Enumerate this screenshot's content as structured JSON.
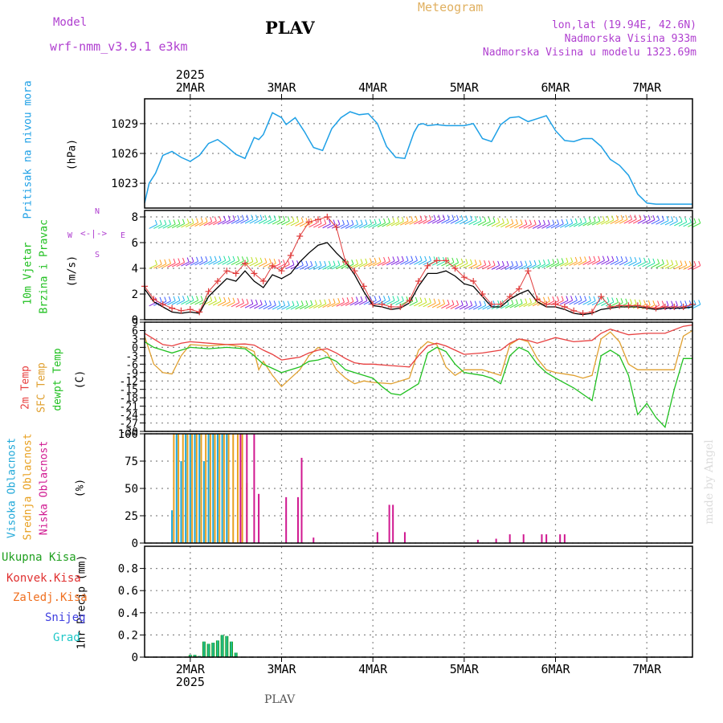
{
  "header": {
    "model_label": "Model",
    "model_name": "wrf-nmm_v3.9.1 e3km",
    "station": "PLAV",
    "title": "Meteogram",
    "coords": "lon,lat (19.94E, 42.6N)",
    "elevation": "Nadmorska Visina 933m",
    "model_elevation": "Nadmorska Visina u modelu 1323.69m",
    "footer_station": "PLAV",
    "watermark": "made by Angel"
  },
  "colors": {
    "pressure": "#1ea0e6",
    "wind_speed": "#000000",
    "wind_gust": "#e03c3c",
    "temp2m": "#e84040",
    "sfc_temp": "#e0a030",
    "dewpt": "#20c020",
    "cloud_high": "#20a8d8",
    "cloud_mid": "#e8a020",
    "cloud_low": "#d01890",
    "precip_total": "#20a020",
    "precip_conv": "#e03030",
    "precip_frz": "#f07020",
    "precip_snow": "#4040e0",
    "precip_grad": "#20c8c8",
    "model_purple": "#b040d0"
  },
  "chart_data": [
    {
      "type": "line",
      "panel": "pressure",
      "ylabel_main": "Pritisak na nivou mora",
      "ylabel_unit": "(hPa)",
      "ylim": [
        1020.5,
        1031.5
      ],
      "yticks": [
        1023,
        1026,
        1029
      ],
      "x_top_labels": [
        "2MAR",
        "3MAR",
        "4MAR",
        "5MAR",
        "6MAR",
        "7MAR"
      ],
      "x_top_year": "2025",
      "x_days": [
        1.5,
        7.5
      ],
      "series": [
        {
          "name": "MSLP",
          "x": [
            1.5,
            1.55,
            1.62,
            1.7,
            1.8,
            1.9,
            2.0,
            2.1,
            2.2,
            2.3,
            2.4,
            2.5,
            2.6,
            2.7,
            2.75,
            2.8,
            2.9,
            3.0,
            3.05,
            3.15,
            3.25,
            3.35,
            3.45,
            3.55,
            3.65,
            3.75,
            3.85,
            3.95,
            4.05,
            4.15,
            4.25,
            4.35,
            4.45,
            4.5,
            4.55,
            4.6,
            4.7,
            4.8,
            4.9,
            5.0,
            5.1,
            5.2,
            5.3,
            5.4,
            5.5,
            5.6,
            5.7,
            5.8,
            5.9,
            6.0,
            6.1,
            6.2,
            6.3,
            6.4,
            6.5,
            6.6,
            6.7,
            6.8,
            6.9,
            7.0,
            7.1,
            7.2,
            7.3,
            7.4,
            7.5
          ],
          "values": [
            1021.0,
            1023.0,
            1024.0,
            1025.8,
            1026.2,
            1025.6,
            1025.2,
            1025.8,
            1027.0,
            1027.4,
            1026.7,
            1025.9,
            1025.5,
            1027.6,
            1027.4,
            1027.9,
            1030.1,
            1029.6,
            1028.9,
            1029.6,
            1028.2,
            1026.6,
            1026.3,
            1028.5,
            1029.6,
            1030.2,
            1029.9,
            1030.0,
            1029.0,
            1026.7,
            1025.6,
            1025.5,
            1028.1,
            1028.9,
            1029.0,
            1028.8,
            1028.9,
            1028.8,
            1028.8,
            1028.8,
            1029.0,
            1027.5,
            1027.2,
            1028.9,
            1029.6,
            1029.7,
            1029.2,
            1029.5,
            1029.8,
            1028.3,
            1027.3,
            1027.2,
            1027.5,
            1027.5,
            1026.7,
            1025.4,
            1024.8,
            1023.8,
            1021.9,
            1021.0,
            1020.9,
            1020.9,
            1020.9,
            1020.9,
            1020.9
          ]
        }
      ]
    },
    {
      "type": "line",
      "panel": "wind",
      "ylabel_main": "10m Vjetar",
      "ylabel_sub": "Brzina i Pravac",
      "ylabel_unit": "(m/s)",
      "compass": {
        "n": "N",
        "s": "S",
        "w": "W",
        "e": "E"
      },
      "ylim": [
        0,
        8.5
      ],
      "yticks": [
        0,
        2,
        4,
        6,
        8
      ],
      "series": [
        {
          "name": "Speed",
          "x": [
            1.5,
            1.6,
            1.7,
            1.8,
            1.9,
            2.0,
            2.1,
            2.2,
            2.3,
            2.4,
            2.5,
            2.6,
            2.7,
            2.8,
            2.9,
            3.0,
            3.1,
            3.2,
            3.3,
            3.4,
            3.5,
            3.6,
            3.7,
            3.8,
            3.9,
            4.0,
            4.1,
            4.2,
            4.3,
            4.4,
            4.5,
            4.6,
            4.7,
            4.8,
            4.9,
            5.0,
            5.1,
            5.2,
            5.3,
            5.4,
            5.5,
            5.6,
            5.7,
            5.8,
            5.9,
            6.0,
            6.1,
            6.2,
            6.3,
            6.4,
            6.5,
            6.6,
            6.7,
            6.8,
            6.9,
            7.0,
            7.1,
            7.2,
            7.3,
            7.4,
            7.5
          ],
          "values": [
            2.4,
            1.4,
            1.0,
            0.6,
            0.5,
            0.6,
            0.5,
            1.8,
            2.5,
            3.2,
            3.0,
            3.8,
            3.0,
            2.5,
            3.5,
            3.2,
            3.6,
            4.5,
            5.2,
            5.8,
            6.0,
            5.2,
            4.5,
            3.5,
            2.2,
            1.1,
            1.0,
            0.8,
            0.9,
            1.3,
            2.6,
            3.6,
            3.6,
            3.8,
            3.4,
            2.8,
            2.6,
            1.8,
            1.0,
            1.0,
            1.6,
            2.0,
            2.3,
            1.4,
            1.0,
            1.0,
            0.8,
            0.5,
            0.4,
            0.5,
            0.8,
            0.9,
            1.0,
            1.0,
            1.0,
            0.9,
            0.8,
            0.9,
            0.9,
            0.9,
            1.0
          ]
        },
        {
          "name": "Gust",
          "x": [
            1.5,
            1.6,
            1.7,
            1.8,
            1.9,
            2.0,
            2.1,
            2.2,
            2.3,
            2.4,
            2.5,
            2.6,
            2.7,
            2.8,
            2.9,
            3.0,
            3.1,
            3.2,
            3.3,
            3.4,
            3.5,
            3.6,
            3.7,
            3.8,
            3.9,
            4.0,
            4.1,
            4.2,
            4.3,
            4.4,
            4.5,
            4.6,
            4.7,
            4.8,
            4.9,
            5.0,
            5.1,
            5.2,
            5.3,
            5.4,
            5.5,
            5.6,
            5.7,
            5.8,
            5.9,
            6.0,
            6.1,
            6.2,
            6.3,
            6.4,
            6.5,
            6.6,
            6.7,
            6.8,
            6.9,
            7.0,
            7.1,
            7.2,
            7.3,
            7.4,
            7.5
          ],
          "values": [
            2.6,
            1.6,
            1.2,
            0.9,
            0.7,
            0.8,
            0.6,
            2.2,
            3.0,
            3.8,
            3.6,
            4.4,
            3.6,
            3.0,
            4.2,
            3.8,
            5.0,
            6.5,
            7.6,
            7.8,
            8.0,
            7.2,
            4.5,
            3.8,
            2.6,
            1.2,
            1.2,
            1.0,
            1.0,
            1.5,
            3.0,
            4.2,
            4.6,
            4.6,
            4.0,
            3.3,
            3.0,
            2.0,
            1.2,
            1.2,
            1.8,
            2.4,
            3.8,
            1.6,
            1.2,
            1.2,
            1.0,
            0.7,
            0.5,
            0.6,
            1.8,
            1.0,
            1.1,
            1.1,
            1.1,
            1.0,
            0.9,
            1.0,
            1.0,
            1.0,
            1.2
          ]
        }
      ]
    },
    {
      "type": "line",
      "panel": "temperature",
      "ylabel_2m": "2m Temp",
      "ylabel_sfc": "SFC Temp",
      "ylabel_dew": "dewpt Temp",
      "ylabel_unit": "(C)",
      "ylim": [
        -30,
        9
      ],
      "yticks": [
        9,
        6,
        3,
        0,
        -3,
        -6,
        -9,
        -12,
        -15,
        -18,
        -21,
        -24,
        -27,
        -30
      ],
      "series": [
        {
          "name": "2m Temp",
          "x": [
            1.5,
            1.6,
            1.7,
            1.8,
            1.9,
            2.0,
            2.2,
            2.4,
            2.6,
            2.7,
            2.8,
            2.9,
            3.0,
            3.1,
            3.2,
            3.3,
            3.4,
            3.5,
            3.6,
            3.7,
            3.8,
            3.9,
            4.0,
            4.2,
            4.4,
            4.5,
            4.6,
            4.7,
            4.8,
            4.9,
            5.0,
            5.2,
            5.4,
            5.5,
            5.6,
            5.7,
            5.8,
            6.0,
            6.2,
            6.4,
            6.5,
            6.6,
            6.7,
            6.8,
            7.0,
            7.2,
            7.4,
            7.5
          ],
          "values": [
            5.0,
            3.0,
            1.0,
            0.5,
            1.5,
            2.0,
            1.5,
            1.0,
            1.2,
            0.8,
            -1.0,
            -2.5,
            -4.5,
            -4.0,
            -3.5,
            -2.0,
            -1.0,
            -0.5,
            -2.0,
            -4.0,
            -5.5,
            -6.0,
            -6.0,
            -6.5,
            -7.0,
            -3.0,
            0.5,
            1.5,
            0.5,
            -1.0,
            -2.5,
            -2.0,
            -1.0,
            1.5,
            3.0,
            2.5,
            1.5,
            3.5,
            2.0,
            2.5,
            5.0,
            6.5,
            5.5,
            4.5,
            5.0,
            5.0,
            7.5,
            8.0
          ]
        },
        {
          "name": "SFC Temp",
          "x": [
            1.5,
            1.6,
            1.7,
            1.8,
            1.9,
            2.0,
            2.2,
            2.4,
            2.6,
            2.7,
            2.75,
            2.8,
            2.9,
            3.0,
            3.1,
            3.2,
            3.3,
            3.4,
            3.5,
            3.6,
            3.7,
            3.8,
            3.9,
            4.0,
            4.2,
            4.4,
            4.5,
            4.6,
            4.7,
            4.8,
            4.9,
            5.0,
            5.2,
            5.3,
            5.4,
            5.5,
            5.6,
            5.7,
            5.8,
            5.9,
            6.0,
            6.2,
            6.3,
            6.4,
            6.5,
            6.6,
            6.7,
            6.8,
            6.9,
            7.0,
            7.2,
            7.3,
            7.4,
            7.5
          ],
          "values": [
            4.0,
            -6.0,
            -9.0,
            -9.5,
            -3.0,
            1.0,
            0.5,
            1.0,
            0.0,
            -1.5,
            -8.0,
            -5.0,
            -10.0,
            -14.0,
            -11.0,
            -8.0,
            -3.0,
            0.0,
            -2.0,
            -8.0,
            -11.0,
            -13.0,
            -12.0,
            -12.5,
            -13.0,
            -11.0,
            -1.0,
            2.0,
            1.0,
            -7.0,
            -10.0,
            -8.0,
            -8.0,
            -9.0,
            -10.0,
            1.0,
            3.0,
            2.0,
            -4.0,
            -8.0,
            -9.0,
            -10.0,
            -11.0,
            -10.0,
            3.0,
            5.5,
            2.0,
            -6.0,
            -8.0,
            -8.0,
            -8.0,
            -8.0,
            4.0,
            6.0
          ]
        },
        {
          "name": "Dewpt",
          "x": [
            1.5,
            1.6,
            1.7,
            1.8,
            1.9,
            2.0,
            2.2,
            2.4,
            2.6,
            2.7,
            2.8,
            2.9,
            3.0,
            3.1,
            3.2,
            3.3,
            3.4,
            3.5,
            3.6,
            3.7,
            3.8,
            3.9,
            4.0,
            4.1,
            4.2,
            4.3,
            4.4,
            4.5,
            4.6,
            4.7,
            4.8,
            4.9,
            5.0,
            5.2,
            5.3,
            5.4,
            5.5,
            5.6,
            5.7,
            5.8,
            5.9,
            6.0,
            6.2,
            6.4,
            6.5,
            6.6,
            6.7,
            6.8,
            6.9,
            7.0,
            7.1,
            7.2,
            7.3,
            7.4,
            7.5
          ],
          "values": [
            2.0,
            0.0,
            -1.0,
            -2.0,
            -1.0,
            0.0,
            -0.5,
            0.0,
            -0.5,
            -3.0,
            -6.0,
            -7.5,
            -9.0,
            -8.0,
            -7.0,
            -5.0,
            -4.5,
            -3.5,
            -5.0,
            -8.0,
            -9.0,
            -10.0,
            -11.0,
            -14.0,
            -16.5,
            -17.0,
            -15.0,
            -13.0,
            -2.0,
            0.0,
            -1.5,
            -6.0,
            -9.0,
            -10.0,
            -11.0,
            -13.0,
            -3.0,
            0.0,
            -1.5,
            -6.0,
            -9.0,
            -11.0,
            -14.5,
            -19.0,
            -3.0,
            -1.0,
            -3.0,
            -10.0,
            -24.0,
            -20.0,
            -25.0,
            -28.5,
            -15.0,
            -4.0,
            -4.0
          ]
        }
      ]
    },
    {
      "type": "bar",
      "panel": "cloud",
      "ylabel_high": "Visoka Oblacnost",
      "ylabel_mid": "Srednja Oblacnost",
      "ylabel_low": "Niska Oblacnost",
      "ylabel_unit": "(%)",
      "ylim": [
        0,
        100
      ],
      "yticks": [
        0,
        25,
        50,
        75,
        100
      ],
      "series": [
        {
          "name": "High",
          "x": [
            1.8,
            1.85,
            1.9,
            1.95,
            2.0,
            2.05,
            2.1,
            2.15,
            2.2,
            2.25,
            2.3,
            2.35,
            2.4
          ],
          "values": [
            30,
            100,
            75,
            100,
            100,
            100,
            100,
            75,
            100,
            100,
            100,
            100,
            100
          ]
        },
        {
          "name": "Mid",
          "x": [
            1.82,
            1.87,
            1.92,
            1.97,
            2.02,
            2.07,
            2.12,
            2.17,
            2.22,
            2.27,
            2.32,
            2.37,
            2.42,
            2.47,
            2.52,
            2.57,
            2.62
          ],
          "values": [
            100,
            100,
            100,
            100,
            100,
            100,
            100,
            100,
            100,
            100,
            100,
            100,
            100,
            100,
            100,
            100,
            55
          ]
        },
        {
          "name": "Low",
          "x": [
            2.55,
            2.62,
            2.7,
            2.75,
            3.05,
            3.18,
            3.22,
            3.35,
            4.05,
            4.18,
            4.22,
            4.35,
            5.15,
            5.35,
            5.5,
            5.65,
            5.85,
            5.9,
            6.05,
            6.1
          ],
          "values": [
            100,
            100,
            100,
            45,
            42,
            42,
            78,
            5,
            10,
            35,
            35,
            10,
            3,
            4,
            8,
            8,
            8,
            8,
            8,
            8
          ]
        }
      ]
    },
    {
      "type": "bar",
      "panel": "precip",
      "legend": [
        "Ukupna Kisa",
        "Konvek.Kisa",
        "Zaledj.Kisa",
        "Snijeg",
        "Grad"
      ],
      "ylabel_unit": "1hr Precip (mm)",
      "ylim": [
        0,
        1.0
      ],
      "yticks": [
        0,
        0.2,
        0.4,
        0.6,
        0.8
      ],
      "x_bottom_labels": [
        "2MAR",
        "3MAR",
        "4MAR",
        "5MAR",
        "6MAR",
        "7MAR"
      ],
      "x_bottom_year": "2025",
      "series": [
        {
          "name": "Total",
          "x": [
            2.0,
            2.05,
            2.1,
            2.15,
            2.2,
            2.25,
            2.3,
            2.35,
            2.4,
            2.45,
            2.5
          ],
          "values": [
            0.02,
            0.02,
            0.01,
            0.14,
            0.12,
            0.13,
            0.15,
            0.2,
            0.19,
            0.14,
            0.04
          ]
        }
      ]
    }
  ]
}
